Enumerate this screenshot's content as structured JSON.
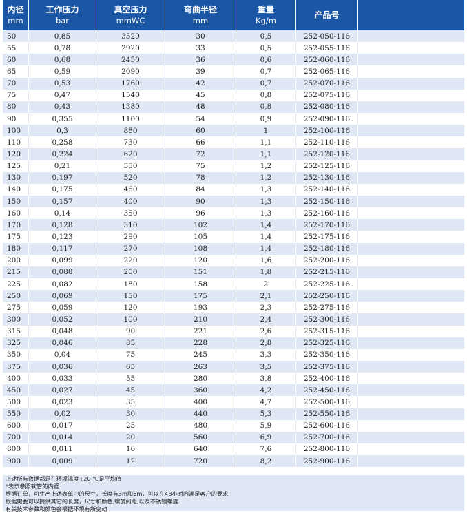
{
  "table": {
    "headers": [
      {
        "title": "内径",
        "unit": "mm"
      },
      {
        "title": "工作压力",
        "unit": "bar"
      },
      {
        "title": "真空压力",
        "unit": "mmWC"
      },
      {
        "title": "弯曲半径",
        "unit": "mm"
      },
      {
        "title": "重量",
        "unit": "Kg/m"
      },
      {
        "title": "产品号",
        "unit": ""
      },
      {
        "title": "",
        "unit": ""
      }
    ],
    "rows": [
      [
        "50",
        "0,85",
        "3520",
        "30",
        "0,5",
        "252-050-116",
        ""
      ],
      [
        "55",
        "0,78",
        "2920",
        "33",
        "0,5",
        "252-055-116",
        ""
      ],
      [
        "60",
        "0,68",
        "2450",
        "36",
        "0,6",
        "252-060-116",
        ""
      ],
      [
        "65",
        "0,59",
        "2090",
        "39",
        "0,7",
        "252-065-116",
        ""
      ],
      [
        "70",
        "0,53",
        "1760",
        "42",
        "0,7",
        "252-070-116",
        ""
      ],
      [
        "75",
        "0,47",
        "1540",
        "45",
        "0,8",
        "252-075-116",
        ""
      ],
      [
        "80",
        "0,43",
        "1380",
        "48",
        "0,8",
        "252-080-116",
        ""
      ],
      [
        "90",
        "0,355",
        "1100",
        "54",
        "0,9",
        "252-090-116",
        ""
      ],
      [
        "100",
        "0,3",
        "880",
        "60",
        "1",
        "252-100-116",
        ""
      ],
      [
        "110",
        "0,258",
        "730",
        "66",
        "1,1",
        "252-110-116",
        ""
      ],
      [
        "120",
        "0,224",
        "620",
        "72",
        "1,1",
        "252-120-116",
        ""
      ],
      [
        "125",
        "0,21",
        "550",
        "75",
        "1,2",
        "252-125-116",
        ""
      ],
      [
        "130",
        "0,197",
        "520",
        "78",
        "1,2",
        "252-130-116",
        ""
      ],
      [
        "140",
        "0,175",
        "460",
        "84",
        "1,3",
        "252-140-116",
        ""
      ],
      [
        "150",
        "0,157",
        "400",
        "90",
        "1,3",
        "252-150-116",
        ""
      ],
      [
        "160",
        "0,14",
        "350",
        "96",
        "1,3",
        "252-160-116",
        ""
      ],
      [
        "170",
        "0,128",
        "310",
        "102",
        "1,4",
        "252-170-116",
        ""
      ],
      [
        "175",
        "0,123",
        "290",
        "105",
        "1,4",
        "252-175-116",
        ""
      ],
      [
        "180",
        "0,117",
        "270",
        "108",
        "1,4",
        "252-180-116",
        ""
      ],
      [
        "200",
        "0,099",
        "220",
        "120",
        "1,6",
        "252-200-116",
        ""
      ],
      [
        "215",
        "0,088",
        "200",
        "151",
        "1,8",
        "252-215-116",
        ""
      ],
      [
        "225",
        "0,082",
        "180",
        "158",
        "2",
        "252-225-116",
        ""
      ],
      [
        "250",
        "0,069",
        "150",
        "175",
        "2,1",
        "252-250-116",
        ""
      ],
      [
        "275",
        "0,059",
        "120",
        "193",
        "2,3",
        "252-275-116",
        ""
      ],
      [
        "300",
        "0,052",
        "100",
        "210",
        "2,4",
        "252-300-116",
        ""
      ],
      [
        "315",
        "0,048",
        "90",
        "221",
        "2,6",
        "252-315-116",
        ""
      ],
      [
        "325",
        "0,046",
        "85",
        "228",
        "2,8",
        "252-325-116",
        ""
      ],
      [
        "350",
        "0,04",
        "75",
        "245",
        "3,3",
        "252-350-116",
        ""
      ],
      [
        "375",
        "0,036",
        "65",
        "263",
        "3,5",
        "252-375-116",
        ""
      ],
      [
        "400",
        "0,033",
        "55",
        "280",
        "3,8",
        "252-400-116",
        ""
      ],
      [
        "450",
        "0,027",
        "45",
        "360",
        "4,2",
        "252-450-116",
        ""
      ],
      [
        "500",
        "0,023",
        "35",
        "400",
        "4,7",
        "252-500-116",
        ""
      ],
      [
        "550",
        "0,02",
        "30",
        "440",
        "5,3",
        "252-550-116",
        ""
      ],
      [
        "600",
        "0,017",
        "25",
        "480",
        "5,9",
        "252-600-116",
        ""
      ],
      [
        "700",
        "0,014",
        "20",
        "560",
        "6,9",
        "252-700-116",
        ""
      ],
      [
        "800",
        "0,011",
        "16",
        "640",
        "7,6",
        "252-800-116",
        ""
      ],
      [
        "900",
        "0,009",
        "12",
        "720",
        "8,2",
        "252-900-116",
        ""
      ]
    ]
  },
  "notes": [
    "上述所有数据都是在环境温度+20 ℃是平均值",
    "*表示参照软管的内壁",
    "根据订单，可生产上述表单中的尺寸，长度有3m和6m，可以在48小时内满足客户的要求",
    "根据需要可以提供其它的长度，尺寸和颜色,螺旋间距,以及不锈钢螺旋",
    "有关技术参数和颜色会根据环境有所变动"
  ],
  "colors": {
    "header_bg": "#1b56a5",
    "row_alt_bg": "#dfe8f4",
    "text": "#222222"
  }
}
